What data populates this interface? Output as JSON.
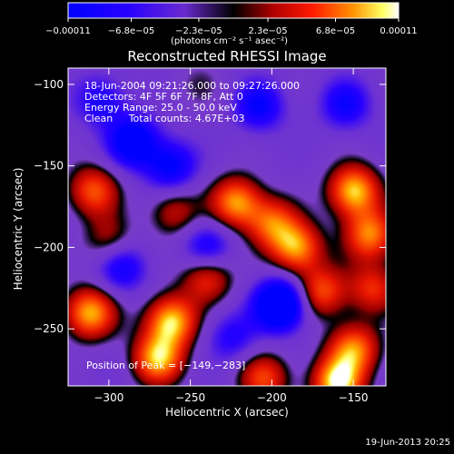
{
  "chart_data": {
    "type": "heatmap",
    "title": "Reconstructed RHESSI Image",
    "xlabel": "Heliocentric X (arcsec)",
    "ylabel": "Heliocentric Y (arcsec)",
    "xlim": [
      -325,
      -130
    ],
    "ylim": [
      -285,
      -90
    ],
    "x_ticks": [
      -300,
      -250,
      -200,
      -150
    ],
    "y_ticks": [
      -100,
      -150,
      -200,
      -250
    ],
    "x_tick_labels": [
      "−300",
      "−250",
      "−200",
      "−150"
    ],
    "y_tick_labels": [
      "−100",
      "−150",
      "−200",
      "−250"
    ],
    "colorbar": {
      "range": [
        -0.00011,
        0.00011
      ],
      "tick_values": [
        -0.00011,
        -6.8e-05,
        -2.3e-05,
        2.3e-05,
        6.8e-05,
        0.00011
      ],
      "tick_labels": [
        "−0.00011",
        "−6.8e−05",
        "−2.3e−05",
        "2.3e−05",
        "6.8e−05",
        "0.00011"
      ],
      "unit_label": "(photons cm⁻² s⁻¹ asec⁻²)"
    },
    "annotations": [
      "18-Jun-2004 09:21:26.000 to 09:27:26.000",
      "Detectors: 4F 5F 6F 7F 8F, Att 0",
      "Energy Range: 25.0 - 50.0 keV",
      "Clean     Total counts: 4.67E+03"
    ],
    "peak_label": "Position of Peak = [−149,−283]",
    "peak_position": [
      -149,
      -283
    ],
    "blobs": [
      {
        "x": -195,
        "y": -235,
        "v": -1.0
      },
      {
        "x": -285,
        "y": -135,
        "v": -0.7
      },
      {
        "x": -262,
        "y": -150,
        "v": -0.55
      },
      {
        "x": -292,
        "y": -212,
        "v": -0.45
      },
      {
        "x": -208,
        "y": -113,
        "v": -0.5
      },
      {
        "x": -240,
        "y": -200,
        "v": -0.45
      },
      {
        "x": -155,
        "y": -112,
        "v": -0.45
      },
      {
        "x": -225,
        "y": -255,
        "v": -0.35
      },
      {
        "x": -305,
        "y": -110,
        "v": -0.4
      },
      {
        "x": -312,
        "y": -240,
        "v": 0.8
      },
      {
        "x": -150,
        "y": -165,
        "v": 0.85
      },
      {
        "x": -140,
        "y": -192,
        "v": 0.7
      },
      {
        "x": -222,
        "y": -172,
        "v": 0.75
      },
      {
        "x": -200,
        "y": -185,
        "v": 0.6
      },
      {
        "x": -185,
        "y": -200,
        "v": 0.75
      },
      {
        "x": -170,
        "y": -227,
        "v": 0.6
      },
      {
        "x": -262,
        "y": -245,
        "v": 0.85
      },
      {
        "x": -270,
        "y": -268,
        "v": 0.8
      },
      {
        "x": -240,
        "y": -218,
        "v": 0.55
      },
      {
        "x": -150,
        "y": -262,
        "v": 0.7
      },
      {
        "x": -160,
        "y": -283,
        "v": 0.9
      },
      {
        "x": -310,
        "y": -165,
        "v": 0.6
      },
      {
        "x": -260,
        "y": -178,
        "v": 0.4
      },
      {
        "x": -205,
        "y": -280,
        "v": 0.55
      },
      {
        "x": -138,
        "y": -225,
        "v": 0.5
      },
      {
        "x": -245,
        "y": -100,
        "v": 0.15
      },
      {
        "x": -300,
        "y": -195,
        "v": 0.35
      }
    ]
  },
  "footer_timestamp": "19-Jun-2013 20:25"
}
